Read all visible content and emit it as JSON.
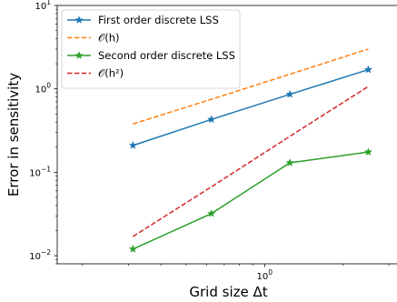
{
  "chart_data": {
    "type": "line",
    "xlabel": "Grid size Δt",
    "ylabel": "Error in sensitivity",
    "x_scale": "log",
    "y_scale": "log",
    "xlim": [
      0.16,
      3.3
    ],
    "ylim": [
      0.008,
      10
    ],
    "x_major_ticks": [
      {
        "value": 1,
        "label": "10",
        "exp": "0"
      }
    ],
    "y_major_ticks": [
      {
        "value": 0.01,
        "label": "10",
        "exp": "−2"
      },
      {
        "value": 0.1,
        "label": "10",
        "exp": "−1"
      },
      {
        "value": 1,
        "label": "10",
        "exp": "0"
      },
      {
        "value": 10,
        "label": "10",
        "exp": "1"
      }
    ],
    "legend_position": "top-left",
    "series": [
      {
        "name": "First order discrete LSS",
        "color": "#1f77b4",
        "linestyle": "solid",
        "marker": "star",
        "x": [
          0.3125,
          0.625,
          1.25,
          2.5
        ],
        "y": [
          0.21,
          0.43,
          0.86,
          1.7
        ]
      },
      {
        "name": "O(h)",
        "legend_math": "𝒪(h)",
        "color": "#ff7f0e",
        "linestyle": "dashed",
        "marker": "none",
        "x": [
          0.3125,
          0.625,
          1.25,
          2.5
        ],
        "y": [
          0.38,
          0.75,
          1.5,
          3.0
        ]
      },
      {
        "name": "Second order discrete LSS",
        "color": "#2ca02c",
        "linestyle": "solid",
        "marker": "star",
        "x": [
          0.3125,
          0.625,
          1.25,
          2.5
        ],
        "y": [
          0.012,
          0.032,
          0.13,
          0.175
        ]
      },
      {
        "name": "O(h^2)",
        "legend_math": "𝒪(h²)",
        "color": "#d62728",
        "linestyle": "dashed",
        "marker": "none",
        "x": [
          0.3125,
          0.625,
          1.25,
          2.5
        ],
        "y": [
          0.017,
          0.067,
          0.27,
          1.07
        ]
      }
    ]
  }
}
